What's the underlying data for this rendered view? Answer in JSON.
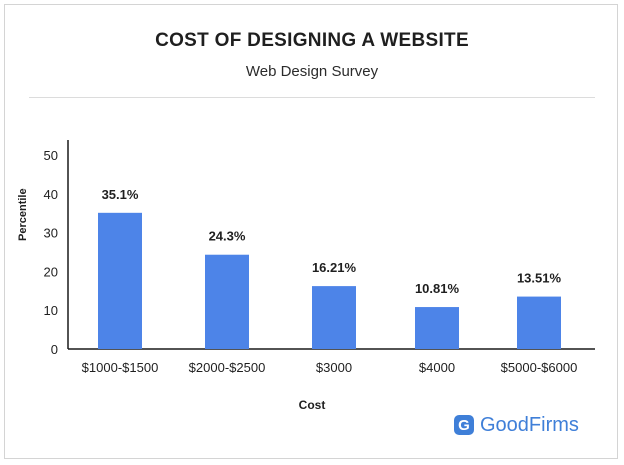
{
  "brand": {
    "logo_text": "GoodFirms",
    "logo_letter": "G",
    "color": "#3f7fd8"
  },
  "chart_data": {
    "type": "bar",
    "title": "COST OF DESIGNING A WEBSITE",
    "subtitle": "Web Design Survey",
    "xlabel": "Cost",
    "ylabel": "Percentile",
    "categories": [
      "$1000-$1500",
      "$2000-$2500",
      "$3000",
      "$4000",
      "$5000-$6000"
    ],
    "values": [
      35.1,
      24.3,
      16.21,
      10.81,
      13.51
    ],
    "data_labels": [
      "35.1%",
      "24.3%",
      "16.21%",
      "10.81%",
      "13.51%"
    ],
    "ylim": [
      0,
      50
    ],
    "yticks": [
      0,
      10,
      20,
      30,
      40,
      50
    ],
    "bar_color": "#4d84e8",
    "grid": false,
    "legend": "none"
  }
}
